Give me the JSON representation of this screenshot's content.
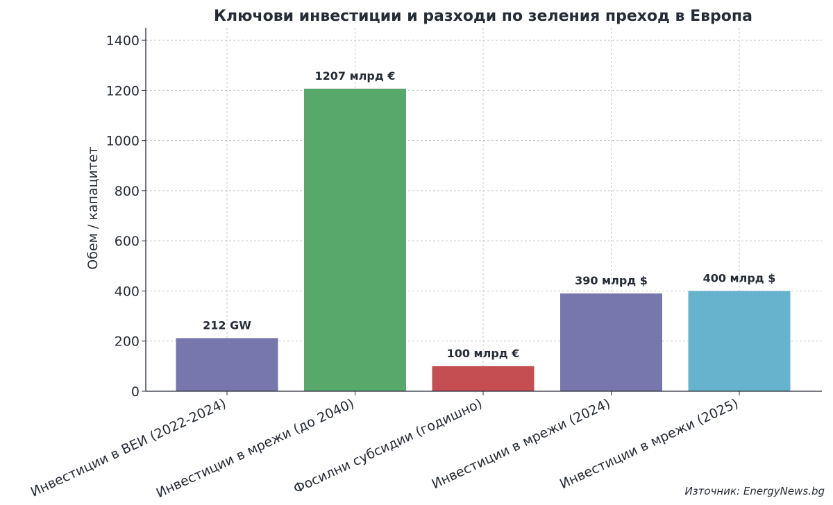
{
  "chart_data": {
    "type": "bar",
    "title": "Ключови инвестиции и разходи по зеления преход в Европа",
    "xlabel": "",
    "ylabel": "Обем / капацитет",
    "ylim": [
      0,
      1450
    ],
    "yticks": [
      0,
      200,
      400,
      600,
      800,
      1000,
      1200,
      1400
    ],
    "grid": true,
    "categories": [
      "Инвестиции в ВЕИ (2022-2024)",
      "Инвестиции в мрежи (до 2040)",
      "Фосилни субсидии (годишно)",
      "Инвестиции в мрежи (2024)",
      "Инвестиции в мрежи (2025)"
    ],
    "values": [
      212,
      1207,
      100,
      390,
      400
    ],
    "data_labels": [
      "212 GW",
      "1207 млрд €",
      "100 млрд €",
      "390 млрд $",
      "400 млрд $"
    ],
    "colors": [
      "#7776ad",
      "#58a76b",
      "#c44e52",
      "#7776ad",
      "#65b3cd"
    ]
  },
  "source": "Източник: EnergyNews.bg"
}
